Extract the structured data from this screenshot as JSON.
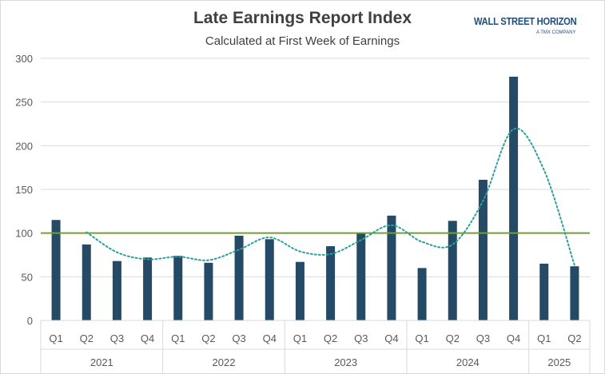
{
  "title": "Late Earnings Report Index",
  "subtitle": "Calculated at First Week of Earnings",
  "logo": {
    "text": "WALL STREET HORIZON",
    "tagline": "A TMX COMPANY"
  },
  "colors": {
    "bars": "#254a66",
    "baseline": "#70a030",
    "trend": "#2e9e9e",
    "grid": "#d9d9d9"
  },
  "chart_data": {
    "type": "bar",
    "title": "Late Earnings Report Index",
    "subtitle": "Calculated at First Week of Earnings",
    "ylim": [
      0,
      300
    ],
    "yticks": [
      0,
      50,
      100,
      150,
      200,
      250,
      300
    ],
    "grid": true,
    "legend": "none",
    "groups": [
      {
        "label": "2021",
        "quarters": [
          "Q1",
          "Q2",
          "Q3",
          "Q4"
        ]
      },
      {
        "label": "2022",
        "quarters": [
          "Q1",
          "Q2",
          "Q3",
          "Q4"
        ]
      },
      {
        "label": "2023",
        "quarters": [
          "Q1",
          "Q2",
          "Q3",
          "Q4"
        ]
      },
      {
        "label": "2024",
        "quarters": [
          "Q1",
          "Q2",
          "Q3",
          "Q4"
        ]
      },
      {
        "label": "2025",
        "quarters": [
          "Q1",
          "Q2"
        ]
      }
    ],
    "values": [
      115,
      87,
      68,
      72,
      74,
      66,
      97,
      93,
      67,
      85,
      100,
      120,
      60,
      114,
      161,
      279,
      65,
      62
    ],
    "reference_line": 100,
    "trend_line": [
      null,
      101,
      78,
      70,
      73,
      69,
      81,
      95,
      79,
      76,
      92,
      109,
      90,
      87,
      137,
      219,
      172,
      63
    ]
  }
}
